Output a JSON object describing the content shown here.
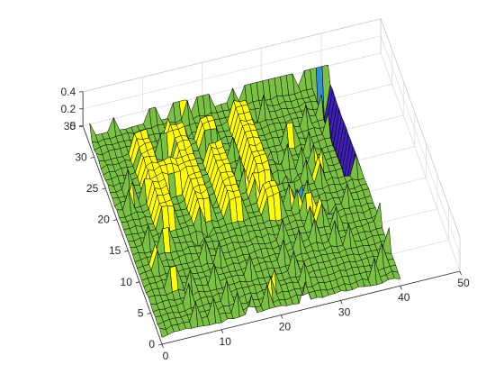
{
  "colors": {
    "base": "#7ac142",
    "peak": "#ffff00",
    "dip": "#2f8fd8",
    "deep": "#3e1fb6",
    "edge": "#000000",
    "background": "#ffffff",
    "grid": "#dcdcdc",
    "text": "#262626"
  },
  "chart_data": {
    "type": "surface",
    "title": "",
    "xlabel": "",
    "ylabel": "",
    "zlabel": "",
    "xlim": [
      0,
      50
    ],
    "ylim": [
      0,
      35
    ],
    "zlim": [
      0,
      0.4
    ],
    "grid": true,
    "colormap_bands": [
      {
        "from": -0.5,
        "to": -0.05,
        "color": "#3e1fb6"
      },
      {
        "from": -0.05,
        "to": 0.05,
        "color": "#2f8fd8"
      },
      {
        "from": 0.05,
        "to": 0.2,
        "color": "#7ac142"
      },
      {
        "from": 0.2,
        "to": 0.5,
        "color": "#ffff00"
      }
    ],
    "x_ticks": [
      "0",
      "10",
      "20",
      "30",
      "40",
      "50"
    ],
    "y_ticks": [
      "0",
      "5",
      "10",
      "15",
      "20",
      "25",
      "30",
      "35"
    ],
    "z_ticks": [
      "0",
      "0.2",
      "0.4"
    ],
    "x_tick_values": [
      0,
      10,
      20,
      30,
      40,
      50
    ],
    "y_tick_values": [
      0,
      5,
      10,
      15,
      20,
      25,
      30,
      35
    ],
    "z_tick_values": [
      0,
      0.2,
      0.4
    ],
    "grid_size": {
      "nx": 41,
      "ny": 33
    },
    "surface_text": "Hi!",
    "baseline_z": 0.1,
    "letter_z": 0.32,
    "valley_z": 0.0,
    "deep_trench_z": -0.3
  }
}
